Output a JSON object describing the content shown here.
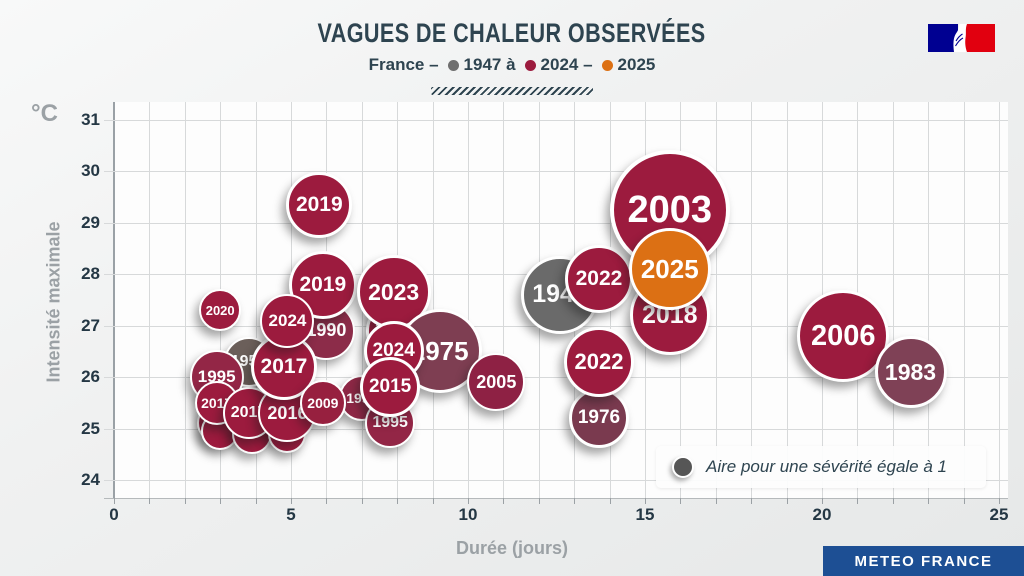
{
  "header": {
    "title": "VAGUES DE CHALEUR OBSERVÉES",
    "subtitle_prefix": "France –",
    "legend": [
      {
        "label": "1947 à",
        "color": "#6F6F6F"
      },
      {
        "label": "2024 –",
        "color": "#9C1B3E"
      },
      {
        "label": "2025",
        "color": "#DC7014"
      }
    ]
  },
  "branding": {
    "gov_logo_name": "marianne-french-republic",
    "footer_label": "METEO FRANCE"
  },
  "chart_data": {
    "type": "scatter",
    "subtype": "bubble",
    "title": "Vagues de chaleur observées",
    "xlabel": "Durée (jours)",
    "ylabel": "Intensité maximale",
    "y_unit": "°C",
    "xlim": [
      0,
      25
    ],
    "ylim": [
      24,
      31
    ],
    "x_ticks": [
      0,
      5,
      10,
      15,
      20,
      25
    ],
    "x_minor_step": 1,
    "y_ticks": [
      31,
      30,
      29,
      28,
      27,
      26,
      25,
      24
    ],
    "grid": true,
    "legend_note": "Aire pour une sévérité égale à 1",
    "legend_note_dot_color": "#565656",
    "bubble_size_meaning": "area proportional to severity",
    "points": [
      {
        "year": "",
        "duration_days": 2.9,
        "intensity_c": 25.1,
        "r": 20,
        "color": "#9C1B3E"
      },
      {
        "year": "",
        "duration_days": 3.0,
        "intensity_c": 24.95,
        "r": 19,
        "color": "#9C1B3E"
      },
      {
        "year": "",
        "duration_days": 3.9,
        "intensity_c": 24.9,
        "r": 20,
        "color": "#9C1B3E"
      },
      {
        "year": "",
        "duration_days": 4.9,
        "intensity_c": 24.9,
        "r": 19,
        "color": "#9C1B3E"
      },
      {
        "year": "1952",
        "duration_days": 3.8,
        "intensity_c": 26.3,
        "r": 25,
        "color": "#6B5F5A"
      },
      {
        "year": "1995",
        "duration_days": 2.9,
        "intensity_c": 26.0,
        "r": 27,
        "color": "#932646"
      },
      {
        "year": "2017",
        "duration_days": 2.9,
        "intensity_c": 25.5,
        "r": 22,
        "color": "#9C1B3E"
      },
      {
        "year": "2017",
        "duration_days": 3.8,
        "intensity_c": 25.3,
        "r": 26,
        "color": "#9C1B3E"
      },
      {
        "year": "2016",
        "duration_days": 4.9,
        "intensity_c": 25.3,
        "r": 29,
        "color": "#9C1B3E"
      },
      {
        "year": "1990",
        "duration_days": 6.0,
        "intensity_c": 26.9,
        "r": 29,
        "color": "#8C2C49"
      },
      {
        "year": "2017",
        "duration_days": 4.8,
        "intensity_c": 26.2,
        "r": 33,
        "color": "#9C1B3E"
      },
      {
        "year": "2019",
        "duration_days": 5.9,
        "intensity_c": 27.8,
        "r": 34,
        "color": "#9C1B3E"
      },
      {
        "year": "2019",
        "duration_days": 5.8,
        "intensity_c": 29.35,
        "r": 33,
        "color": "#9C1B3E"
      },
      {
        "year": "2020",
        "duration_days": 8.0,
        "intensity_c": 26.9,
        "r": 31,
        "color": "#9C1B3E"
      },
      {
        "year": "2023",
        "duration_days": 7.9,
        "intensity_c": 27.65,
        "r": 37,
        "color": "#9C1B3E"
      },
      {
        "year": "2024",
        "duration_days": 4.9,
        "intensity_c": 27.1,
        "r": 27,
        "color": "#9C1B3E"
      },
      {
        "year": "2020",
        "duration_days": 3.0,
        "intensity_c": 27.3,
        "r": 21,
        "color": "#9C1B3E"
      },
      {
        "year": "1975",
        "duration_days": 9.2,
        "intensity_c": 26.5,
        "r": 42,
        "color": "#7E3E52"
      },
      {
        "year": "2024",
        "duration_days": 7.9,
        "intensity_c": 26.5,
        "r": 30,
        "color": "#9C1B3E"
      },
      {
        "year": "1999",
        "duration_days": 7.0,
        "intensity_c": 25.6,
        "r": 23,
        "color": "#8E2846"
      },
      {
        "year": "2009",
        "duration_days": 5.9,
        "intensity_c": 25.5,
        "r": 23,
        "color": "#97203F"
      },
      {
        "year": "1995",
        "duration_days": 7.8,
        "intensity_c": 25.1,
        "r": 25,
        "color": "#932646"
      },
      {
        "year": "2015",
        "duration_days": 7.8,
        "intensity_c": 25.8,
        "r": 30,
        "color": "#9C1B3E"
      },
      {
        "year": "2005",
        "duration_days": 10.8,
        "intensity_c": 25.9,
        "r": 29,
        "color": "#8E2144"
      },
      {
        "year": "1947",
        "duration_days": 12.6,
        "intensity_c": 27.6,
        "r": 39,
        "color": "#6A6A6A"
      },
      {
        "year": "2022",
        "duration_days": 13.7,
        "intensity_c": 27.9,
        "r": 34,
        "color": "#9C1B3E"
      },
      {
        "year": "2003",
        "duration_days": 15.7,
        "intensity_c": 29.25,
        "r": 60,
        "color": "#9C1B3E"
      },
      {
        "year": "1976",
        "duration_days": 13.7,
        "intensity_c": 25.2,
        "r": 30,
        "color": "#7A3A4F"
      },
      {
        "year": "2022",
        "duration_days": 13.7,
        "intensity_c": 26.3,
        "r": 35,
        "color": "#9C1B3E"
      },
      {
        "year": "2018",
        "duration_days": 15.7,
        "intensity_c": 27.2,
        "r": 40,
        "color": "#9C1B3E"
      },
      {
        "year": "2025",
        "duration_days": 15.7,
        "intensity_c": 28.1,
        "r": 41,
        "color": "#DC7014"
      },
      {
        "year": "2006",
        "duration_days": 20.6,
        "intensity_c": 26.8,
        "r": 46,
        "color": "#9C1B3E"
      },
      {
        "year": "1983",
        "duration_days": 22.5,
        "intensity_c": 26.1,
        "r": 36,
        "color": "#7F4156"
      }
    ]
  }
}
